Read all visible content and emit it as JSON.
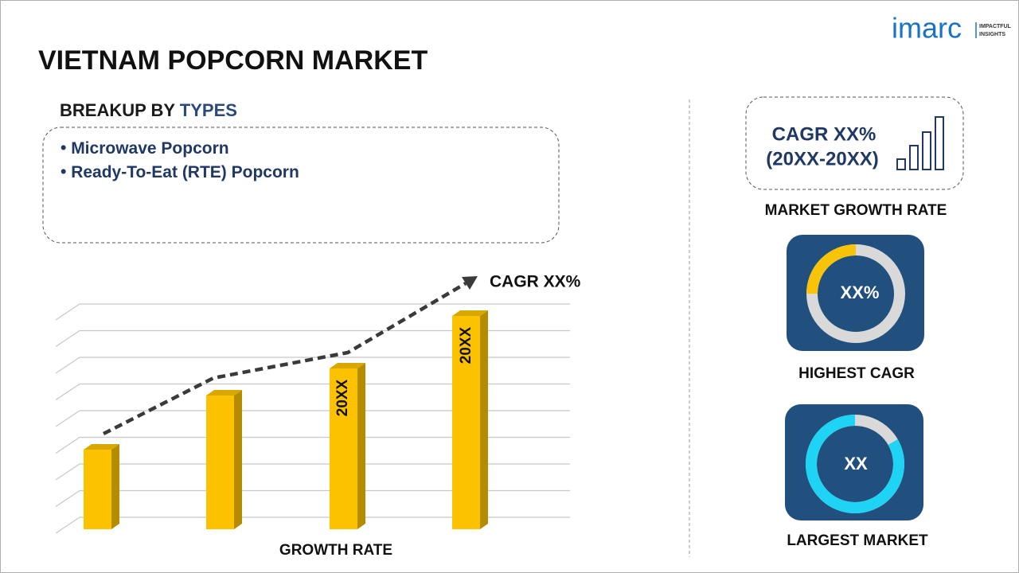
{
  "logo": {
    "brand": "imarc",
    "tagline_1": "IMPACTFUL",
    "tagline_2": "INSIGHTS"
  },
  "header": {
    "title": "VIETNAM POPCORN MARKET"
  },
  "breakup": {
    "label": "BREAKUP BY",
    "highlight": "TYPES",
    "items": [
      "Microwave Popcorn",
      "Ready-To-Eat (RTE) Popcorn"
    ]
  },
  "growth_chart": {
    "bar_labels": [
      "20XX",
      "20XX"
    ],
    "trend_label": "CAGR XX%",
    "axis_label": "GROWTH RATE"
  },
  "market_growth": {
    "cagr": "CAGR XX%",
    "period": "(20XX-20XX)",
    "caption": "MARKET GROWTH RATE"
  },
  "highest_cagr": {
    "value": "XX%",
    "caption": "HIGHEST CAGR"
  },
  "largest_market": {
    "value": "XX",
    "caption": "LARGEST MARKET"
  }
}
